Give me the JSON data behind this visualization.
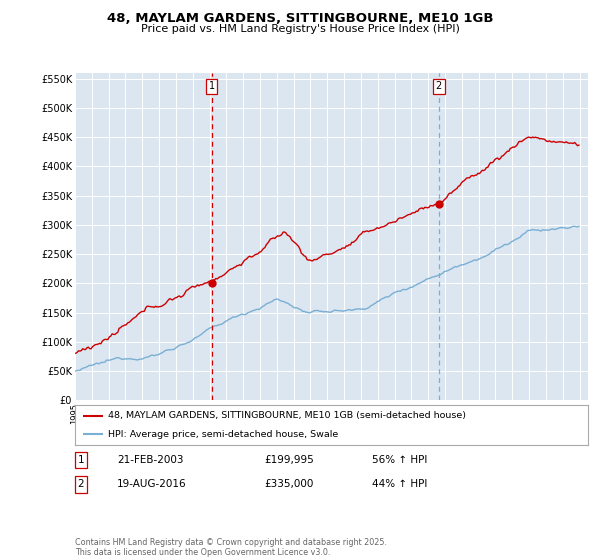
{
  "title_line1": "48, MAYLAM GARDENS, SITTINGBOURNE, ME10 1GB",
  "title_line2": "Price paid vs. HM Land Registry's House Price Index (HPI)",
  "background_color": "#ffffff",
  "plot_bg_color": "#dce6f1",
  "grid_color": "#ffffff",
  "red_color": "#cc0000",
  "blue_color": "#7aafd4",
  "vline1_color": "#cc0000",
  "vline2_color": "#7aafd4",
  "legend1": "48, MAYLAM GARDENS, SITTINGBOURNE, ME10 1GB (semi-detached house)",
  "legend2": "HPI: Average price, semi-detached house, Swale",
  "table_row1_num": "1",
  "table_row1_date": "21-FEB-2003",
  "table_row1_price": "£199,995",
  "table_row1_hpi": "56% ↑ HPI",
  "table_row2_num": "2",
  "table_row2_date": "19-AUG-2016",
  "table_row2_price": "£335,000",
  "table_row2_hpi": "44% ↑ HPI",
  "footnote": "Contains HM Land Registry data © Crown copyright and database right 2025.\nThis data is licensed under the Open Government Licence v3.0.",
  "ylim_min": 0,
  "ylim_max": 560000,
  "yticks": [
    0,
    50000,
    100000,
    150000,
    200000,
    250000,
    300000,
    350000,
    400000,
    450000,
    500000,
    550000
  ],
  "ytick_labels": [
    "£0",
    "£50K",
    "£100K",
    "£150K",
    "£200K",
    "£250K",
    "£300K",
    "£350K",
    "£400K",
    "£450K",
    "£500K",
    "£550K"
  ]
}
